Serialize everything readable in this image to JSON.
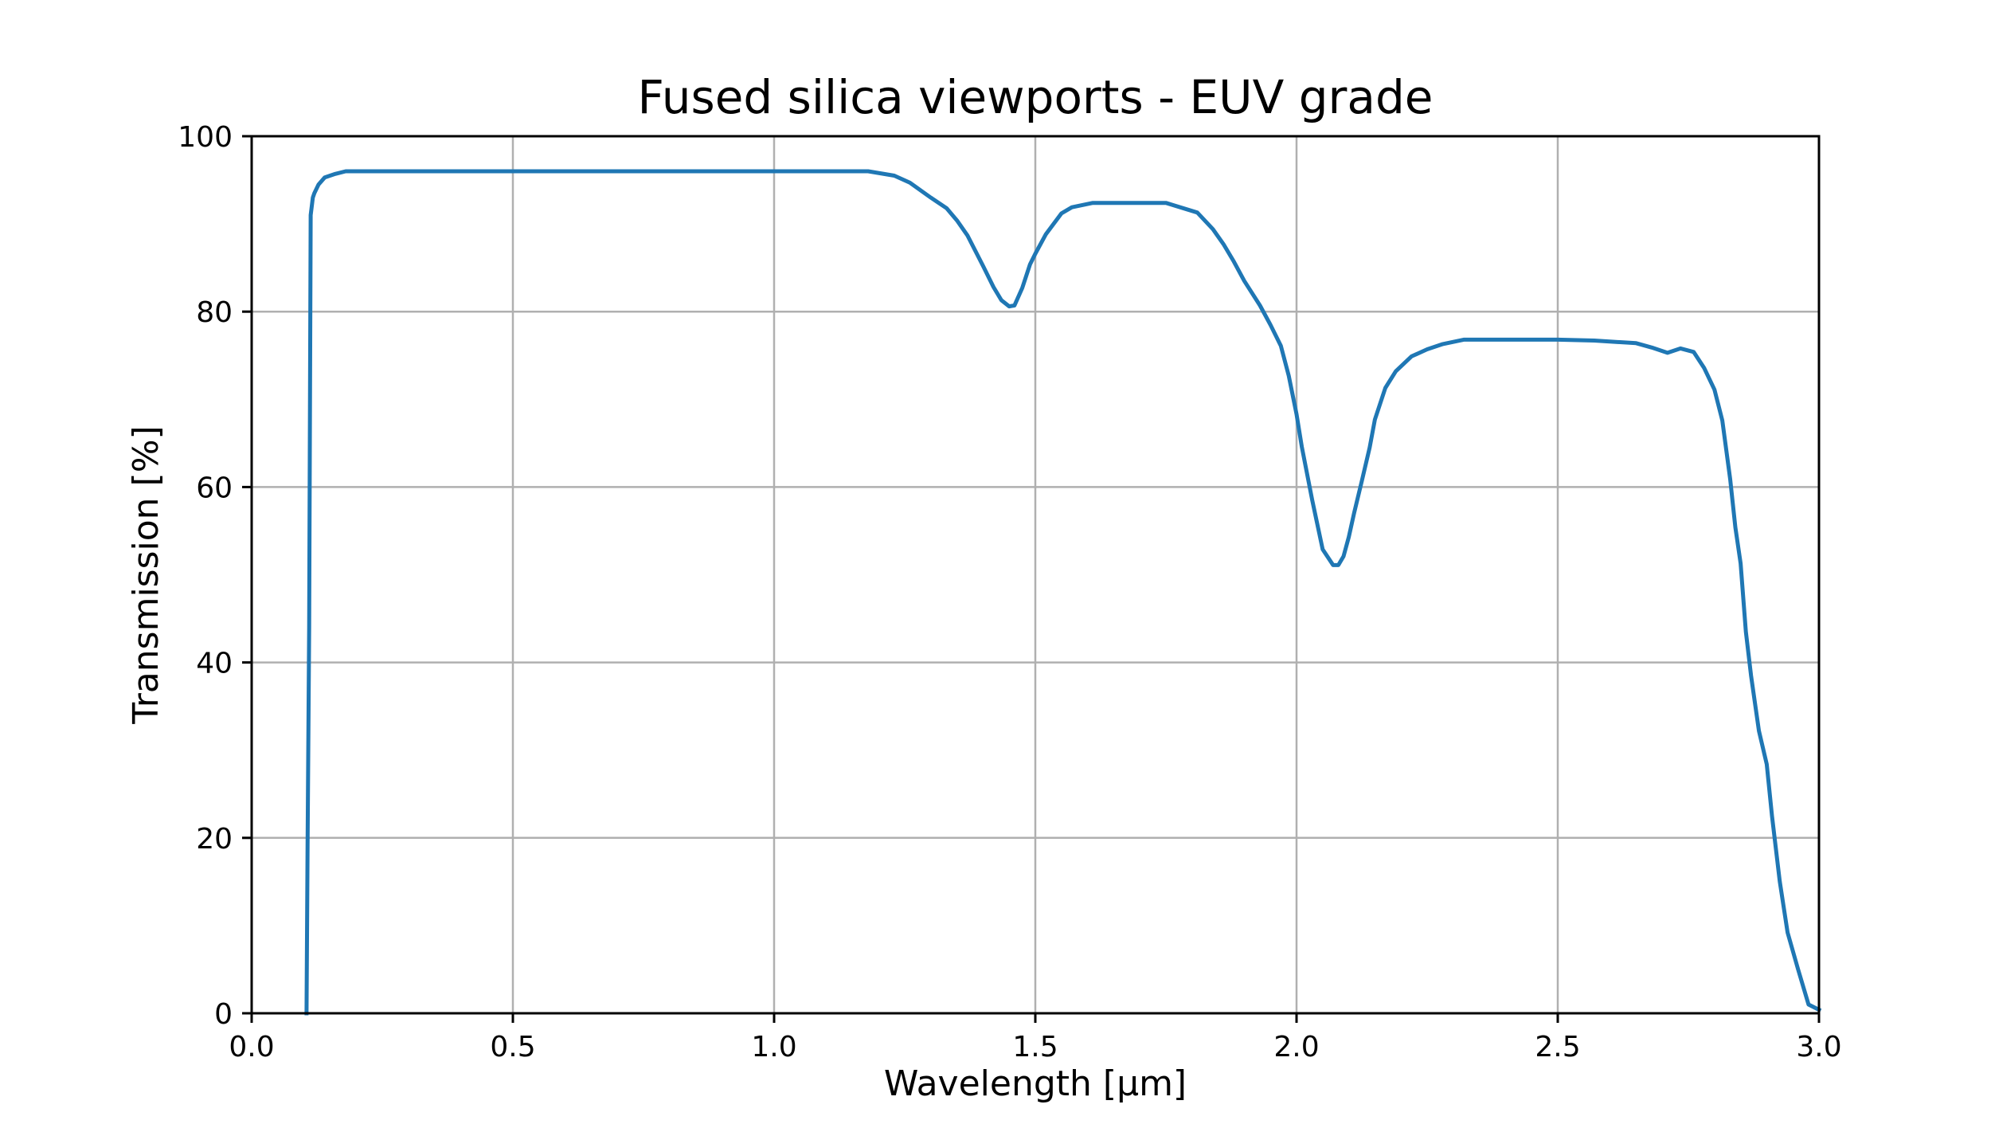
{
  "chart_data": {
    "type": "line",
    "title": "Fused silica viewports - EUV grade",
    "xlabel": "Wavelength [µm]",
    "ylabel": "Transmission [%]",
    "xlim": [
      0.0,
      3.0
    ],
    "ylim": [
      0,
      100
    ],
    "xticks": [
      0.0,
      0.5,
      1.0,
      1.5,
      2.0,
      2.5,
      3.0
    ],
    "xtick_labels": [
      "0.0",
      "0.5",
      "1.0",
      "1.5",
      "2.0",
      "2.5",
      "3.0"
    ],
    "yticks": [
      0,
      20,
      40,
      60,
      80,
      100
    ],
    "ytick_labels": [
      "0",
      "20",
      "40",
      "60",
      "80",
      "100"
    ],
    "grid": true,
    "line_color": "#1f77b4",
    "series": [
      {
        "x": [
          0.105,
          0.107,
          0.11,
          0.113,
          0.117,
          0.12,
          0.128,
          0.14,
          0.16,
          0.18,
          0.2,
          0.225,
          0.3,
          0.5,
          0.8,
          1.0,
          1.18,
          1.23,
          1.26,
          1.3,
          1.33,
          1.35,
          1.37,
          1.4,
          1.42,
          1.435,
          1.45,
          1.46,
          1.475,
          1.49,
          1.5,
          1.52,
          1.55,
          1.57,
          1.61,
          1.7,
          1.75,
          1.81,
          1.84,
          1.86,
          1.88,
          1.9,
          1.93,
          1.95,
          1.97,
          1.985,
          2.0,
          2.01,
          2.03,
          2.05,
          2.07,
          2.08,
          2.09,
          2.1,
          2.11,
          2.125,
          2.14,
          2.15,
          2.17,
          2.19,
          2.22,
          2.25,
          2.28,
          2.32,
          2.36,
          2.4,
          2.5,
          2.57,
          2.65,
          2.68,
          2.71,
          2.735,
          2.76,
          2.78,
          2.8,
          2.815,
          2.83,
          2.84,
          2.85,
          2.86,
          2.87,
          2.885,
          2.9,
          2.91,
          2.925,
          2.94,
          2.96,
          2.98,
          3.0
        ],
        "y": [
          0,
          19,
          44,
          91,
          93,
          93.5,
          94.5,
          95.3,
          95.7,
          96,
          96,
          96,
          96,
          96,
          96,
          96,
          96,
          95.5,
          94.7,
          93,
          91.8,
          90.4,
          88.7,
          85.2,
          82.8,
          81.3,
          80.6,
          80.7,
          82.7,
          85.4,
          86.6,
          88.8,
          91.2,
          91.9,
          92.4,
          92.4,
          92.4,
          91.3,
          89.4,
          87.7,
          85.7,
          83.5,
          80.7,
          78.5,
          76.1,
          72.7,
          68.3,
          64.6,
          58.5,
          52.9,
          51.1,
          51.1,
          52.1,
          54.3,
          57.0,
          60.7,
          64.5,
          67.7,
          71.3,
          73.2,
          74.9,
          75.7,
          76.3,
          76.8,
          76.8,
          76.8,
          76.8,
          76.7,
          76.4,
          75.9,
          75.3,
          75.8,
          75.4,
          73.6,
          71.1,
          67.6,
          60.9,
          55.4,
          51.3,
          43.5,
          38.5,
          32.2,
          28.4,
          22.5,
          15.0,
          9.2,
          5.0,
          1.0,
          0.4
        ]
      }
    ]
  }
}
